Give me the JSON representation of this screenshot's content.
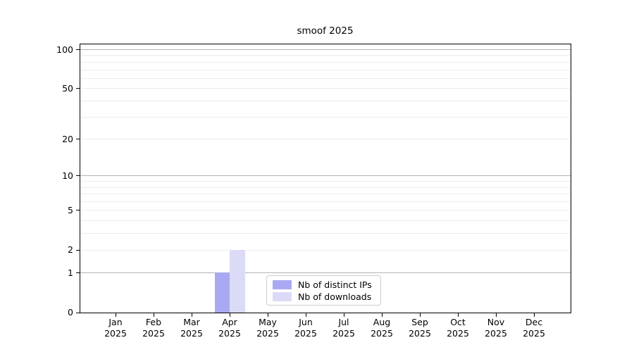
{
  "chart_data": {
    "type": "bar",
    "title": "smoof 2025",
    "categories": [
      "Jan",
      "Feb",
      "Mar",
      "Apr",
      "May",
      "Jun",
      "Jul",
      "Aug",
      "Sep",
      "Oct",
      "Nov",
      "Dec"
    ],
    "category_year": "2025",
    "series": [
      {
        "name": "Nb of distinct IPs",
        "color": "#a9a9f3",
        "values": [
          0,
          0,
          0,
          1,
          0,
          0,
          0,
          0,
          0,
          0,
          0,
          0
        ]
      },
      {
        "name": "Nb of downloads",
        "color": "#dbdbf8",
        "values": [
          0,
          0,
          0,
          2,
          0,
          0,
          0,
          0,
          0,
          0,
          0,
          0
        ]
      }
    ],
    "y_axis": {
      "scale": "log10(1+value)",
      "tick_values": [
        0,
        1,
        2,
        5,
        10,
        20,
        50,
        100
      ],
      "tick_labels": [
        "0",
        "1",
        "2",
        "5",
        "10",
        "20",
        "50",
        "100"
      ],
      "max": 111,
      "major_gridlines": [
        1,
        10,
        100
      ],
      "minor_gridlines": [
        2,
        3,
        4,
        5,
        6,
        7,
        8,
        9,
        20,
        30,
        40,
        50,
        60,
        70,
        80,
        90
      ]
    },
    "legend": {
      "position": "bottom-center",
      "entries": [
        "Nb of distinct IPs",
        "Nb of downloads"
      ]
    },
    "colors": {
      "major_grid": "#b3b3b3",
      "minor_grid": "#ececec",
      "axis": "#000000",
      "text": "#000000",
      "background": "#ffffff"
    }
  }
}
